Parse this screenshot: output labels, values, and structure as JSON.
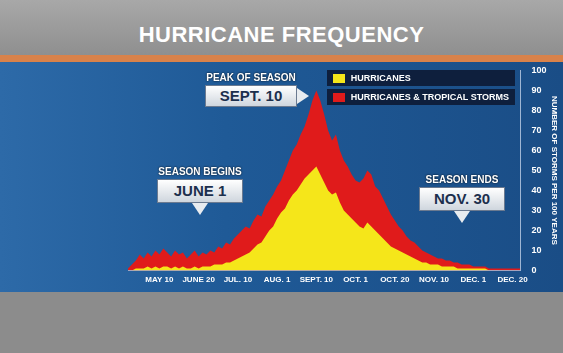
{
  "chart_data": {
    "type": "area",
    "title": "HURRICANE FREQUENCY",
    "y_label": "NUMBER OF STORMS PER 100 YEARS",
    "categories": [
      null,
      null,
      null,
      null,
      null,
      null,
      null,
      null,
      "MAY 10",
      null,
      null,
      null,
      null,
      null,
      null,
      null,
      null,
      null,
      "JUNE 20",
      null,
      null,
      null,
      null,
      null,
      null,
      null,
      null,
      null,
      "JUL. 10",
      null,
      null,
      null,
      null,
      null,
      null,
      null,
      null,
      null,
      "AUG. 1",
      null,
      null,
      null,
      null,
      null,
      null,
      null,
      null,
      null,
      "SEPT. 10",
      null,
      null,
      null,
      null,
      null,
      null,
      null,
      null,
      null,
      "OCT. 1",
      null,
      null,
      null,
      null,
      null,
      null,
      null,
      null,
      null,
      "OCT. 20",
      null,
      null,
      null,
      null,
      null,
      null,
      null,
      null,
      null,
      "NOV. 10",
      null,
      null,
      null,
      null,
      null,
      null,
      null,
      null,
      null,
      "DEC. 1",
      null,
      null,
      null,
      null,
      null,
      null,
      null,
      null,
      null,
      "DEC. 20",
      null,
      null
    ],
    "series": [
      {
        "name": "HURRICANES",
        "color": "#f5e61a",
        "values": [
          0,
          0,
          1,
          1,
          1,
          2,
          1,
          2,
          1,
          2,
          2,
          1,
          2,
          1,
          2,
          1,
          1,
          2,
          1,
          2,
          2,
          2,
          3,
          3,
          3,
          4,
          4,
          5,
          6,
          7,
          8,
          9,
          11,
          13,
          14,
          17,
          20,
          22,
          26,
          29,
          31,
          35,
          38,
          40,
          43,
          46,
          48,
          50,
          52,
          48,
          44,
          40,
          38,
          39,
          34,
          30,
          28,
          26,
          24,
          22,
          21,
          24,
          22,
          20,
          18,
          16,
          14,
          12,
          11,
          10,
          9,
          8,
          7,
          6,
          5,
          4,
          4,
          3,
          3,
          3,
          2,
          2,
          2,
          2,
          1,
          1,
          1,
          1,
          1,
          1,
          1,
          1,
          0,
          0,
          0,
          0,
          0,
          0,
          0,
          0,
          0
        ]
      },
      {
        "name": "HURRICANES & TROPICAL STORMS",
        "color": "#e01b1b",
        "values": [
          1,
          3,
          5,
          8,
          6,
          9,
          7,
          10,
          8,
          11,
          9,
          7,
          10,
          8,
          9,
          6,
          8,
          10,
          7,
          9,
          8,
          10,
          9,
          12,
          11,
          14,
          13,
          16,
          18,
          20,
          22,
          21,
          25,
          28,
          27,
          32,
          35,
          38,
          42,
          45,
          50,
          55,
          60,
          63,
          68,
          72,
          78,
          85,
          90,
          85,
          78,
          70,
          65,
          68,
          60,
          55,
          52,
          48,
          45,
          44,
          46,
          50,
          48,
          42,
          40,
          36,
          32,
          28,
          25,
          22,
          20,
          17,
          15,
          14,
          12,
          10,
          9,
          8,
          7,
          6,
          6,
          5,
          5,
          4,
          4,
          3,
          3,
          3,
          2,
          2,
          2,
          2,
          1,
          1,
          1,
          1,
          1,
          1,
          1,
          1,
          1
        ]
      }
    ],
    "ylim": [
      0,
      100
    ],
    "yticks": [
      0,
      10,
      20,
      30,
      40,
      50,
      60,
      70,
      80,
      90,
      100
    ],
    "grid": false,
    "legend": "upper right",
    "stacked": false,
    "annotations": [
      {
        "label": "PEAK OF SEASON",
        "date": "SEPT. 10"
      },
      {
        "label": "SEASON BEGINS",
        "date": "JUNE 1"
      },
      {
        "label": "SEASON ENDS",
        "date": "NOV. 30"
      }
    ]
  }
}
